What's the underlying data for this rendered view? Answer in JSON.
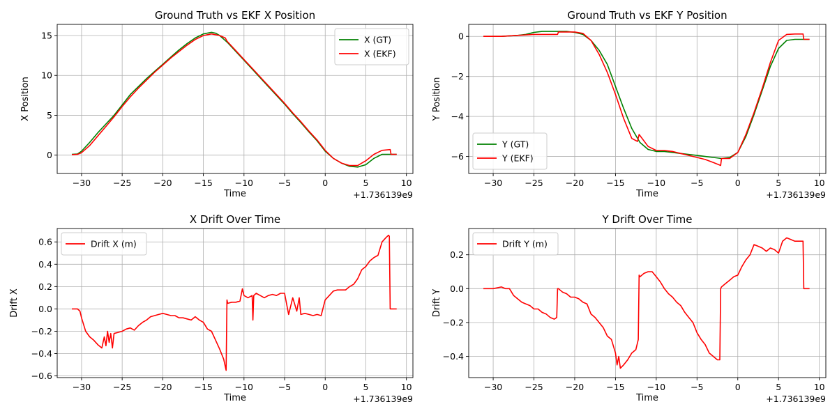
{
  "colors": {
    "gt": "#008000",
    "ekf": "#ff0000",
    "grid": "#b0b0b0",
    "axis": "#000000",
    "legend_edge": "#cccccc"
  },
  "chart_data": [
    {
      "type": "line",
      "title": "Ground Truth vs EKF X Position",
      "xlabel": "Time",
      "ylabel": "X Position",
      "offset_text": "+1.736139e9",
      "xlim": [
        -33.0,
        10.8
      ],
      "ylim": [
        -2.3,
        16.4
      ],
      "xticks": [
        -30,
        -25,
        -20,
        -15,
        -10,
        -5,
        0,
        5,
        10
      ],
      "xtick_labels": [
        "−30",
        "−25",
        "−20",
        "−15",
        "−10",
        "−5",
        "0",
        "5",
        "10"
      ],
      "yticks": [
        0,
        5,
        10,
        15
      ],
      "ytick_labels": [
        "0",
        "5",
        "10",
        "15"
      ],
      "grid": true,
      "legend": "top-right",
      "series": [
        {
          "name": "X (GT)",
          "color": "#008000",
          "x": [
            -31.2,
            -30.5,
            -30,
            -29,
            -28,
            -27,
            -26,
            -25,
            -24,
            -23,
            -22,
            -21,
            -20,
            -19,
            -18,
            -17,
            -16,
            -15,
            -14,
            -13.5,
            -13,
            -12,
            -11,
            -10,
            -9,
            -8,
            -7,
            -6,
            -5,
            -4,
            -3,
            -2,
            -1,
            0,
            1,
            2,
            3,
            4,
            5,
            6,
            7,
            8,
            8.8
          ],
          "y": [
            0.1,
            0.15,
            0.5,
            1.6,
            2.8,
            3.9,
            5.0,
            6.3,
            7.6,
            8.6,
            9.6,
            10.5,
            11.4,
            12.3,
            13.2,
            14.0,
            14.7,
            15.2,
            15.4,
            15.3,
            15.0,
            14.1,
            13.0,
            11.9,
            10.8,
            9.7,
            8.6,
            7.5,
            6.4,
            5.2,
            4.1,
            2.9,
            1.8,
            0.5,
            -0.4,
            -1.0,
            -1.4,
            -1.5,
            -1.2,
            -0.4,
            0.1,
            0.1,
            0.1
          ]
        },
        {
          "name": "X (EKF)",
          "color": "#ff0000",
          "x": [
            -31.2,
            -30.5,
            -30,
            -29,
            -28,
            -27,
            -26,
            -25,
            -24,
            -23,
            -22,
            -21,
            -20,
            -19,
            -18,
            -17,
            -16,
            -15,
            -14,
            -13,
            -12.3,
            -12.1,
            -11,
            -10,
            -9,
            -8,
            -7,
            -6,
            -5,
            -4,
            -3,
            -2,
            -1,
            0,
            1,
            2,
            3,
            4,
            5,
            6,
            7,
            8,
            8.1,
            8.8
          ],
          "y": [
            0.05,
            0.1,
            0.3,
            1.2,
            2.4,
            3.6,
            4.8,
            6.1,
            7.3,
            8.4,
            9.4,
            10.4,
            11.3,
            12.2,
            13.0,
            13.8,
            14.5,
            15.0,
            15.2,
            15.0,
            14.7,
            14.3,
            13.1,
            12.0,
            10.9,
            9.8,
            8.7,
            7.6,
            6.5,
            5.3,
            4.2,
            3.0,
            1.9,
            0.6,
            -0.4,
            -1.0,
            -1.3,
            -1.3,
            -0.7,
            0.1,
            0.6,
            0.7,
            0.1,
            0.1
          ]
        }
      ]
    },
    {
      "type": "line",
      "title": "Ground Truth vs EKF Y Position",
      "xlabel": "Time",
      "ylabel": "Y Position",
      "offset_text": "+1.736139e9",
      "xlim": [
        -33.0,
        10.8
      ],
      "ylim": [
        -6.85,
        0.6
      ],
      "xticks": [
        -30,
        -25,
        -20,
        -15,
        -10,
        -5,
        0,
        5,
        10
      ],
      "xtick_labels": [
        "−30",
        "−25",
        "−20",
        "−15",
        "−10",
        "−5",
        "0",
        "5",
        "10"
      ],
      "yticks": [
        -6,
        -4,
        -2,
        0
      ],
      "ytick_labels": [
        "−6",
        "−4",
        "−2",
        "0"
      ],
      "grid": true,
      "legend": "bottom-left",
      "series": [
        {
          "name": "Y (GT)",
          "color": "#008000",
          "x": [
            -31.2,
            -29,
            -27,
            -26,
            -25,
            -24,
            -23,
            -22,
            -21,
            -20,
            -19,
            -18,
            -17,
            -16,
            -15,
            -14,
            -13,
            -12,
            -11,
            -10,
            -9,
            -8,
            -7,
            -6,
            -5,
            -4,
            -3,
            -2,
            -1,
            0,
            1,
            2,
            3,
            4,
            5,
            6,
            7,
            8,
            8.8
          ],
          "y": [
            0,
            0.0,
            0.05,
            0.1,
            0.2,
            0.25,
            0.25,
            0.25,
            0.25,
            0.2,
            0.1,
            -0.2,
            -0.7,
            -1.4,
            -2.5,
            -3.6,
            -4.6,
            -5.3,
            -5.65,
            -5.75,
            -5.75,
            -5.8,
            -5.85,
            -5.9,
            -5.95,
            -6.0,
            -6.05,
            -6.1,
            -6.05,
            -5.8,
            -5.0,
            -3.9,
            -2.7,
            -1.5,
            -0.6,
            -0.2,
            -0.15,
            -0.15,
            -0.15
          ]
        },
        {
          "name": "Y (EKF)",
          "color": "#ff0000",
          "x": [
            -31.2,
            -29,
            -27,
            -25,
            -23,
            -22.1,
            -22,
            -21,
            -20,
            -19,
            -18,
            -17,
            -16,
            -15,
            -14,
            -13,
            -12.3,
            -12.1,
            -11,
            -10,
            -9,
            -8,
            -7,
            -6,
            -5,
            -4,
            -3,
            -2.1,
            -2,
            -1,
            0,
            1,
            2,
            3,
            4,
            5,
            6,
            7,
            8,
            8.1,
            8.8
          ],
          "y": [
            0,
            0.0,
            0.05,
            0.1,
            0.1,
            0.1,
            0.22,
            0.22,
            0.22,
            0.15,
            -0.2,
            -0.9,
            -1.8,
            -2.9,
            -4.1,
            -5.1,
            -5.25,
            -4.9,
            -5.5,
            -5.7,
            -5.7,
            -5.75,
            -5.85,
            -5.95,
            -6.05,
            -6.15,
            -6.3,
            -6.45,
            -6.1,
            -6.1,
            -5.8,
            -4.9,
            -3.8,
            -2.6,
            -1.3,
            -0.2,
            0.1,
            0.12,
            0.12,
            -0.15,
            -0.15
          ]
        }
      ]
    },
    {
      "type": "line",
      "title": "X Drift Over Time",
      "xlabel": "Time",
      "ylabel": "Drift X",
      "offset_text": "+1.736139e9",
      "xlim": [
        -33.0,
        10.8
      ],
      "ylim": [
        -0.615,
        0.72
      ],
      "xticks": [
        -30,
        -25,
        -20,
        -15,
        -10,
        -5,
        0,
        5,
        10
      ],
      "xtick_labels": [
        "−30",
        "−25",
        "−20",
        "−15",
        "−10",
        "−5",
        "0",
        "5",
        "10"
      ],
      "yticks": [
        -0.6,
        -0.4,
        -0.2,
        0.0,
        0.2,
        0.4,
        0.6
      ],
      "ytick_labels": [
        "−0.6",
        "−0.4",
        "−0.2",
        "0.0",
        "0.2",
        "0.4",
        "0.6"
      ],
      "grid": true,
      "legend": "top-left",
      "series": [
        {
          "name": "Drift X (m)",
          "color": "#ff0000",
          "x": [
            -31.2,
            -30.5,
            -30.2,
            -30,
            -29.5,
            -29,
            -28.5,
            -28,
            -27.5,
            -27.2,
            -27,
            -26.8,
            -26.6,
            -26.4,
            -26.2,
            -26,
            -25.5,
            -25,
            -24.5,
            -24,
            -23.5,
            -23,
            -22.5,
            -22,
            -21.5,
            -21,
            -20.5,
            -20,
            -19.5,
            -19,
            -18.5,
            -18,
            -17.5,
            -17,
            -16.5,
            -16,
            -15.5,
            -15,
            -14.5,
            -14,
            -13.5,
            -13,
            -12.5,
            -12.2,
            -12.1,
            -12,
            -11.5,
            -11,
            -10.5,
            -10.2,
            -10,
            -9.5,
            -9,
            -8.9,
            -8.8,
            -8.5,
            -8,
            -7.5,
            -7,
            -6.5,
            -6,
            -5.5,
            -5,
            -4.5,
            -4,
            -3.5,
            -3.2,
            -3,
            -2.5,
            -2,
            -1.5,
            -1,
            -0.5,
            0,
            0.5,
            1,
            1.5,
            2,
            2.5,
            3,
            3.5,
            4,
            4.5,
            5,
            5.5,
            6,
            6.5,
            7,
            7.5,
            7.8,
            7.9,
            8,
            8.1,
            8.8
          ],
          "y": [
            0,
            0,
            -0.02,
            -0.08,
            -0.2,
            -0.25,
            -0.28,
            -0.32,
            -0.35,
            -0.25,
            -0.33,
            -0.2,
            -0.3,
            -0.22,
            -0.35,
            -0.22,
            -0.21,
            -0.2,
            -0.18,
            -0.17,
            -0.19,
            -0.15,
            -0.12,
            -0.1,
            -0.07,
            -0.06,
            -0.05,
            -0.04,
            -0.05,
            -0.06,
            -0.06,
            -0.08,
            -0.08,
            -0.09,
            -0.1,
            -0.07,
            -0.1,
            -0.12,
            -0.18,
            -0.2,
            -0.28,
            -0.36,
            -0.45,
            -0.55,
            0.08,
            0.05,
            0.06,
            0.06,
            0.07,
            0.18,
            0.12,
            0.1,
            0.12,
            -0.1,
            0.12,
            0.14,
            0.12,
            0.1,
            0.12,
            0.13,
            0.12,
            0.14,
            0.14,
            -0.05,
            0.1,
            -0.02,
            0.1,
            -0.05,
            -0.04,
            -0.05,
            -0.06,
            -0.05,
            -0.06,
            0.08,
            0.12,
            0.16,
            0.17,
            0.17,
            0.17,
            0.2,
            0.22,
            0.27,
            0.35,
            0.38,
            0.43,
            0.46,
            0.48,
            0.6,
            0.64,
            0.66,
            0.65,
            0,
            0,
            0
          ]
        }
      ]
    },
    {
      "type": "line",
      "title": "Y Drift Over Time",
      "xlabel": "Time",
      "ylabel": "Drift Y",
      "offset_text": "+1.736139e9",
      "xlim": [
        -33.0,
        10.8
      ],
      "ylim": [
        -0.525,
        0.355
      ],
      "xticks": [
        -30,
        -25,
        -20,
        -15,
        -10,
        -5,
        0,
        5,
        10
      ],
      "xtick_labels": [
        "−30",
        "−25",
        "−20",
        "−15",
        "−10",
        "−5",
        "0",
        "5",
        "10"
      ],
      "yticks": [
        -0.4,
        -0.2,
        0.0,
        0.2
      ],
      "ytick_labels": [
        "−0.4",
        "−0.2",
        "0.0",
        "0.2"
      ],
      "grid": true,
      "legend": "top-left",
      "series": [
        {
          "name": "Drift Y (m)",
          "color": "#ff0000",
          "x": [
            -31.2,
            -30,
            -29,
            -28.5,
            -28,
            -27.5,
            -27,
            -26.5,
            -26,
            -25.5,
            -25,
            -24.5,
            -24,
            -23.5,
            -23,
            -22.5,
            -22.2,
            -22.1,
            -22,
            -21.5,
            -21,
            -20.5,
            -20,
            -19.5,
            -19,
            -18.5,
            -18,
            -17.5,
            -17,
            -16.5,
            -16,
            -15.5,
            -15,
            -14.8,
            -14.6,
            -14.4,
            -14,
            -13.5,
            -13,
            -12.5,
            -12.2,
            -12.1,
            -12,
            -11.5,
            -11,
            -10.5,
            -10,
            -9.5,
            -9,
            -8.5,
            -8,
            -7.5,
            -7,
            -6.5,
            -6,
            -5.5,
            -5,
            -4.5,
            -4,
            -3.5,
            -3,
            -2.5,
            -2.2,
            -2.1,
            -2,
            -1.5,
            -1,
            -0.5,
            0,
            0.5,
            1,
            1.5,
            2,
            2.5,
            3,
            3.5,
            4,
            4.5,
            5,
            5.5,
            6,
            6.5,
            7,
            7.5,
            8,
            8.1,
            8.8
          ],
          "y": [
            0,
            0,
            0.01,
            0.0,
            0.0,
            -0.04,
            -0.06,
            -0.08,
            -0.09,
            -0.1,
            -0.12,
            -0.12,
            -0.14,
            -0.15,
            -0.17,
            -0.18,
            -0.17,
            0.0,
            0.0,
            -0.02,
            -0.03,
            -0.05,
            -0.05,
            -0.06,
            -0.08,
            -0.09,
            -0.15,
            -0.17,
            -0.2,
            -0.23,
            -0.28,
            -0.3,
            -0.38,
            -0.45,
            -0.4,
            -0.47,
            -0.45,
            -0.42,
            -0.38,
            -0.36,
            -0.3,
            0.08,
            0.07,
            0.09,
            0.1,
            0.1,
            0.07,
            0.04,
            0.0,
            -0.03,
            -0.05,
            -0.08,
            -0.1,
            -0.14,
            -0.17,
            -0.2,
            -0.26,
            -0.3,
            -0.33,
            -0.38,
            -0.4,
            -0.42,
            -0.42,
            0.0,
            0.01,
            0.03,
            0.05,
            0.07,
            0.08,
            0.13,
            0.17,
            0.2,
            0.26,
            0.25,
            0.24,
            0.22,
            0.24,
            0.23,
            0.21,
            0.28,
            0.3,
            0.29,
            0.28,
            0.28,
            0.28,
            0.0,
            0.0
          ]
        }
      ]
    }
  ]
}
